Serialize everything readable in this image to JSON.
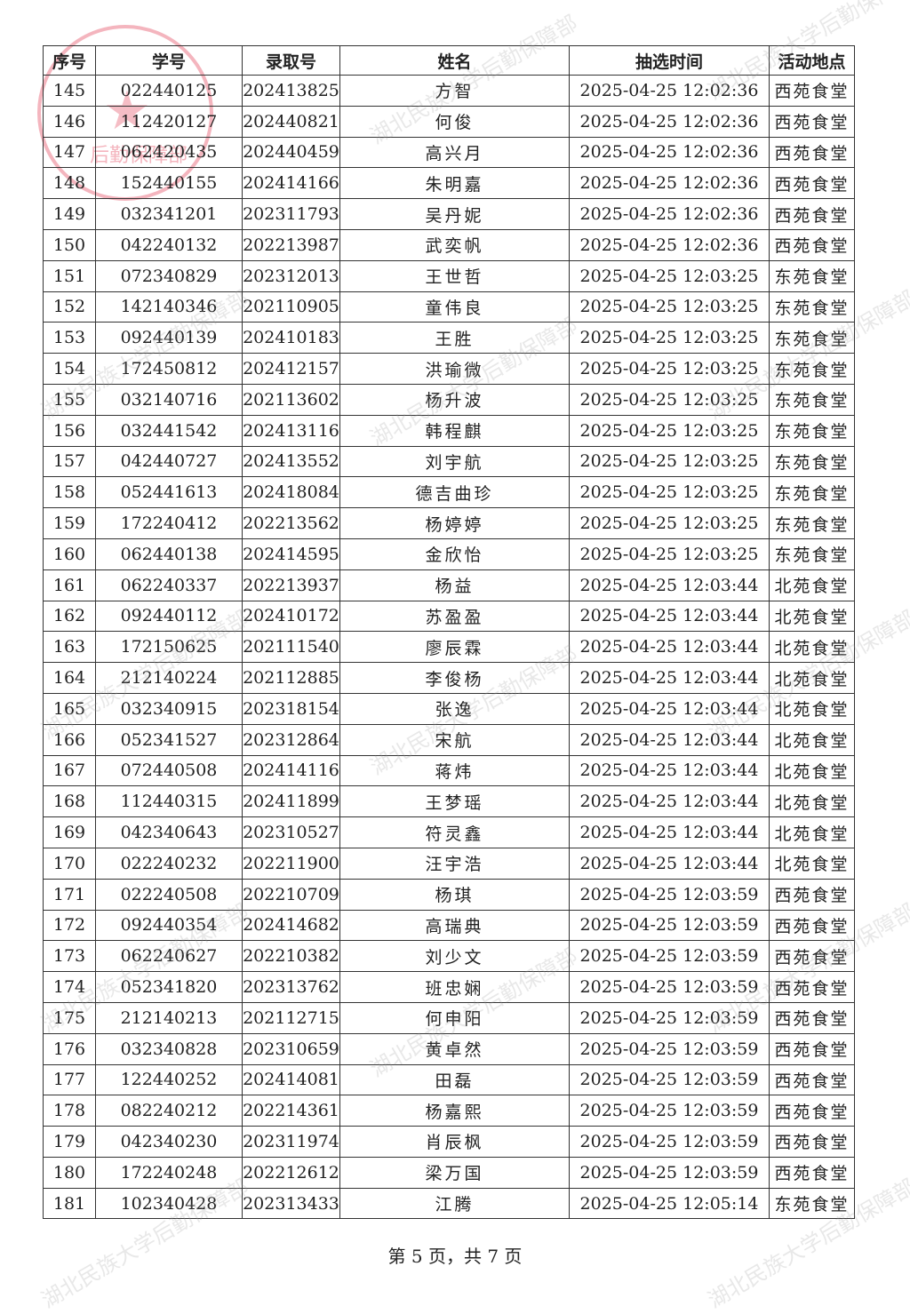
{
  "table": {
    "headers": [
      "序号",
      "学号",
      "录取号",
      "姓名",
      "抽选时间",
      "活动地点"
    ],
    "rows": [
      [
        "145",
        "022440125",
        "202413825",
        "方智",
        "2025-04-25 12:02:36",
        "西苑食堂"
      ],
      [
        "146",
        "112420127",
        "202440821",
        "何俊",
        "2025-04-25 12:02:36",
        "西苑食堂"
      ],
      [
        "147",
        "062420435",
        "202440459",
        "高兴月",
        "2025-04-25 12:02:36",
        "西苑食堂"
      ],
      [
        "148",
        "152440155",
        "202414166",
        "朱明嘉",
        "2025-04-25 12:02:36",
        "西苑食堂"
      ],
      [
        "149",
        "032341201",
        "202311793",
        "吴丹妮",
        "2025-04-25 12:02:36",
        "西苑食堂"
      ],
      [
        "150",
        "042240132",
        "202213987",
        "武奕帆",
        "2025-04-25 12:02:36",
        "西苑食堂"
      ],
      [
        "151",
        "072340829",
        "202312013",
        "王世哲",
        "2025-04-25 12:03:25",
        "东苑食堂"
      ],
      [
        "152",
        "142140346",
        "202110905",
        "童伟良",
        "2025-04-25 12:03:25",
        "东苑食堂"
      ],
      [
        "153",
        "092440139",
        "202410183",
        "王胜",
        "2025-04-25 12:03:25",
        "东苑食堂"
      ],
      [
        "154",
        "172450812",
        "202412157",
        "洪瑜微",
        "2025-04-25 12:03:25",
        "东苑食堂"
      ],
      [
        "155",
        "032140716",
        "202113602",
        "杨升波",
        "2025-04-25 12:03:25",
        "东苑食堂"
      ],
      [
        "156",
        "032441542",
        "202413116",
        "韩程麒",
        "2025-04-25 12:03:25",
        "东苑食堂"
      ],
      [
        "157",
        "042440727",
        "202413552",
        "刘宇航",
        "2025-04-25 12:03:25",
        "东苑食堂"
      ],
      [
        "158",
        "052441613",
        "202418084",
        "德吉曲珍",
        "2025-04-25 12:03:25",
        "东苑食堂"
      ],
      [
        "159",
        "172240412",
        "202213562",
        "杨婷婷",
        "2025-04-25 12:03:25",
        "东苑食堂"
      ],
      [
        "160",
        "062440138",
        "202414595",
        "金欣怡",
        "2025-04-25 12:03:25",
        "东苑食堂"
      ],
      [
        "161",
        "062240337",
        "202213937",
        "杨益",
        "2025-04-25 12:03:44",
        "北苑食堂"
      ],
      [
        "162",
        "092440112",
        "202410172",
        "苏盈盈",
        "2025-04-25 12:03:44",
        "北苑食堂"
      ],
      [
        "163",
        "172150625",
        "202111540",
        "廖辰霖",
        "2025-04-25 12:03:44",
        "北苑食堂"
      ],
      [
        "164",
        "212140224",
        "202112885",
        "李俊杨",
        "2025-04-25 12:03:44",
        "北苑食堂"
      ],
      [
        "165",
        "032340915",
        "202318154",
        "张逸",
        "2025-04-25 12:03:44",
        "北苑食堂"
      ],
      [
        "166",
        "052341527",
        "202312864",
        "宋航",
        "2025-04-25 12:03:44",
        "北苑食堂"
      ],
      [
        "167",
        "072440508",
        "202414116",
        "蒋炜",
        "2025-04-25 12:03:44",
        "北苑食堂"
      ],
      [
        "168",
        "112440315",
        "202411899",
        "王梦瑶",
        "2025-04-25 12:03:44",
        "北苑食堂"
      ],
      [
        "169",
        "042340643",
        "202310527",
        "符灵鑫",
        "2025-04-25 12:03:44",
        "北苑食堂"
      ],
      [
        "170",
        "022240232",
        "202211900",
        "汪宇浩",
        "2025-04-25 12:03:44",
        "北苑食堂"
      ],
      [
        "171",
        "022240508",
        "202210709",
        "杨琪",
        "2025-04-25 12:03:59",
        "西苑食堂"
      ],
      [
        "172",
        "092440354",
        "202414682",
        "高瑞典",
        "2025-04-25 12:03:59",
        "西苑食堂"
      ],
      [
        "173",
        "062240627",
        "202210382",
        "刘少文",
        "2025-04-25 12:03:59",
        "西苑食堂"
      ],
      [
        "174",
        "052341820",
        "202313762",
        "班忠娴",
        "2025-04-25 12:03:59",
        "西苑食堂"
      ],
      [
        "175",
        "212140213",
        "202112715",
        "何申阳",
        "2025-04-25 12:03:59",
        "西苑食堂"
      ],
      [
        "176",
        "032340828",
        "202310659",
        "黄卓然",
        "2025-04-25 12:03:59",
        "西苑食堂"
      ],
      [
        "177",
        "122440252",
        "202414081",
        "田磊",
        "2025-04-25 12:03:59",
        "西苑食堂"
      ],
      [
        "178",
        "082240212",
        "202214361",
        "杨嘉熙",
        "2025-04-25 12:03:59",
        "西苑食堂"
      ],
      [
        "179",
        "042340230",
        "202311974",
        "肖辰枫",
        "2025-04-25 12:03:59",
        "西苑食堂"
      ],
      [
        "180",
        "172240248",
        "202212612",
        "梁万国",
        "2025-04-25 12:03:59",
        "西苑食堂"
      ],
      [
        "181",
        "102340428",
        "202313433",
        "江腾",
        "2025-04-25 12:05:14",
        "东苑食堂"
      ]
    ]
  },
  "footer": "第 5 页，共 7 页",
  "watermark": "湖北民族大学后勤保障部",
  "stamp_text": "后勤保障部",
  "colors": {
    "stamp": "#e65a6e",
    "watermark": "#969696"
  }
}
